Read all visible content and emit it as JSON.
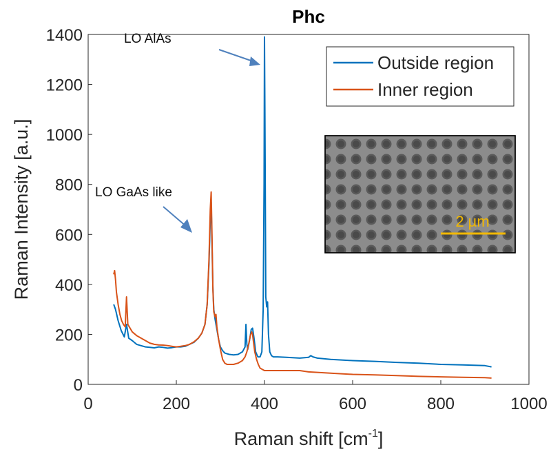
{
  "chart_data": {
    "type": "line",
    "title": "Phc",
    "xlabel": "Raman shift [cm",
    "xlabel_sup": "-1",
    "xlabel_end": "]",
    "ylabel": "Raman Intensity [a.u.]",
    "xlim": [
      0,
      1000
    ],
    "ylim": [
      0,
      1400
    ],
    "xticks": [
      0,
      200,
      400,
      600,
      800,
      1000
    ],
    "yticks": [
      0,
      200,
      400,
      600,
      800,
      1000,
      1200,
      1400
    ],
    "grid": false,
    "legend_position": "top-right",
    "series": [
      {
        "name": "Outside region",
        "color": "#0072bd",
        "x": [
          58,
          62,
          68,
          75,
          82,
          87,
          92,
          100,
          110,
          120,
          130,
          140,
          150,
          160,
          170,
          180,
          190,
          200,
          210,
          220,
          230,
          240,
          250,
          258,
          265,
          270,
          274,
          277,
          279,
          281,
          283,
          285,
          288,
          292,
          296,
          300,
          305,
          310,
          320,
          330,
          340,
          350,
          356,
          358,
          360,
          362,
          366,
          370,
          373,
          376,
          380,
          385,
          390,
          394,
          397,
          399,
          400,
          401,
          402,
          403,
          405,
          407,
          409,
          412,
          416,
          420,
          430,
          450,
          480,
          500,
          505,
          510,
          520,
          550,
          600,
          650,
          700,
          750,
          800,
          850,
          900,
          915
        ],
        "y": [
          320,
          300,
          255,
          215,
          190,
          240,
          185,
          175,
          160,
          155,
          150,
          148,
          146,
          150,
          148,
          145,
          147,
          150,
          150,
          152,
          160,
          168,
          185,
          205,
          240,
          320,
          480,
          660,
          730,
          560,
          390,
          300,
          260,
          220,
          180,
          150,
          135,
          125,
          120,
          118,
          120,
          130,
          150,
          240,
          160,
          140,
          175,
          220,
          225,
          190,
          130,
          110,
          110,
          130,
          300,
          800,
          1390,
          1100,
          700,
          350,
          310,
          330,
          200,
          130,
          115,
          110,
          110,
          108,
          105,
          108,
          115,
          110,
          105,
          100,
          95,
          92,
          88,
          85,
          80,
          78,
          75,
          70
        ]
      },
      {
        "name": "Inner region",
        "color": "#d95319",
        "x": [
          58,
          60,
          62,
          64,
          68,
          72,
          76,
          80,
          84,
          87,
          90,
          95,
          100,
          110,
          120,
          130,
          140,
          150,
          160,
          170,
          180,
          190,
          200,
          210,
          220,
          230,
          240,
          250,
          258,
          265,
          270,
          274,
          277,
          279,
          281,
          283,
          285,
          288,
          290,
          292,
          296,
          300,
          305,
          310,
          315,
          320,
          330,
          340,
          350,
          356,
          360,
          364,
          368,
          371,
          373,
          375,
          378,
          382,
          386,
          390,
          395,
          400,
          410,
          420,
          450,
          480,
          500,
          520,
          550,
          600,
          650,
          700,
          750,
          800,
          850,
          900,
          915
        ],
        "y": [
          440,
          455,
          420,
          370,
          320,
          280,
          255,
          240,
          230,
          350,
          240,
          225,
          210,
          195,
          185,
          175,
          165,
          160,
          158,
          157,
          155,
          152,
          150,
          152,
          155,
          160,
          170,
          185,
          205,
          240,
          320,
          500,
          700,
          770,
          600,
          380,
          290,
          270,
          280,
          230,
          180,
          140,
          100,
          85,
          80,
          80,
          80,
          85,
          95,
          110,
          130,
          160,
          195,
          210,
          200,
          170,
          130,
          100,
          80,
          65,
          60,
          55,
          55,
          55,
          55,
          55,
          50,
          48,
          45,
          40,
          38,
          35,
          32,
          30,
          28,
          27,
          25
        ]
      }
    ],
    "annotations": [
      {
        "text": "LO AlAs",
        "x": 185,
        "y": 1390
      },
      {
        "text": "LO GaAs like",
        "x": 15,
        "y": 760
      }
    ]
  },
  "inset": {
    "scale_bar_label": "2 µm"
  }
}
